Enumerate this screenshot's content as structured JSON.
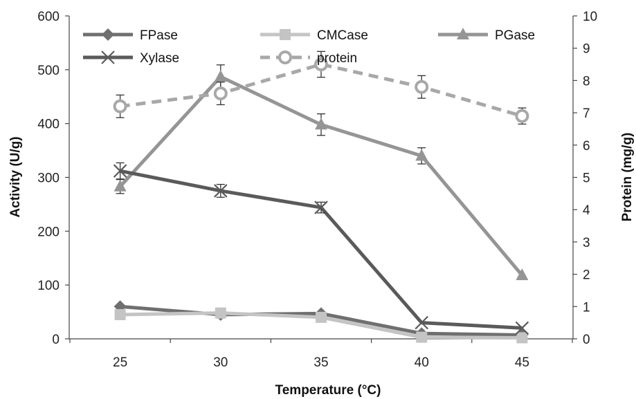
{
  "chart_data": {
    "type": "line",
    "title": "",
    "xlabel": "Temperature (°C)",
    "ylabel": "Activity (U/g)",
    "y2label": "Protein (mg/g)",
    "categories": [
      25,
      30,
      35,
      40,
      45
    ],
    "ylim": [
      0,
      600
    ],
    "y_ticks": [
      0,
      100,
      200,
      300,
      400,
      500,
      600
    ],
    "y2lim": [
      0,
      10
    ],
    "y2_ticks": [
      0,
      1,
      2,
      3,
      4,
      5,
      6,
      7,
      8,
      9,
      10
    ],
    "grid": false,
    "legend_position": "top",
    "series": [
      {
        "name": "FPase",
        "axis": "left",
        "marker": "diamond",
        "color": "#6f6f6f",
        "dash": false,
        "values": [
          60,
          45,
          47,
          10,
          7
        ]
      },
      {
        "name": "CMCase",
        "axis": "left",
        "marker": "square",
        "color": "#c4c4c4",
        "dash": false,
        "values": [
          45,
          48,
          40,
          3,
          2
        ]
      },
      {
        "name": "PGase",
        "axis": "left",
        "marker": "triangle",
        "color": "#959595",
        "dash": false,
        "values": [
          283,
          487,
          398,
          340,
          118
        ],
        "errors": [
          13,
          22,
          20,
          15,
          0
        ]
      },
      {
        "name": "Xylase",
        "axis": "left",
        "marker": "x",
        "color": "#5a5a5a",
        "dash": false,
        "values": [
          312,
          275,
          244,
          30,
          20
        ],
        "errors": [
          15,
          12,
          10,
          0,
          0
        ]
      },
      {
        "name": "protein",
        "axis": "right",
        "marker": "circle",
        "color": "#a8a8a8",
        "dash": true,
        "values": [
          7.2,
          7.6,
          8.5,
          7.8,
          6.9
        ],
        "errors": [
          0.35,
          0.35,
          0.4,
          0.35,
          0.25
        ]
      }
    ]
  }
}
